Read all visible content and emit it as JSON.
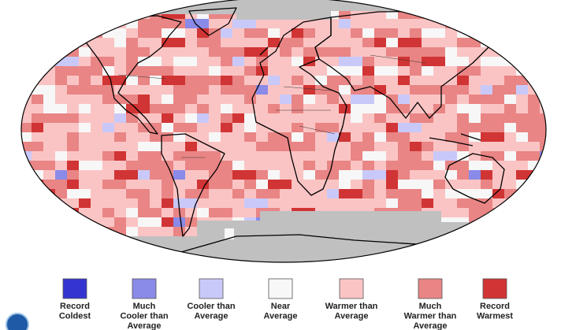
{
  "legend": {
    "items": [
      {
        "lines": [
          "Record",
          "Coldest"
        ],
        "color": "#3434d0"
      },
      {
        "lines": [
          "Much",
          "Cooler than",
          "Average"
        ],
        "color": "#8a8ae8"
      },
      {
        "lines": [
          "Cooler than",
          "Average"
        ],
        "color": "#c9c9f9"
      },
      {
        "lines": [
          "Near",
          "Average"
        ],
        "color": "#f7f7f7"
      },
      {
        "lines": [
          "Warmer than",
          "Average"
        ],
        "color": "#fbc4c4"
      },
      {
        "lines": [
          "Much",
          "Warmer than",
          "Average"
        ],
        "color": "#e98585"
      },
      {
        "lines": [
          "Record",
          "Warmest"
        ],
        "color": "#d13434"
      }
    ]
  }
}
